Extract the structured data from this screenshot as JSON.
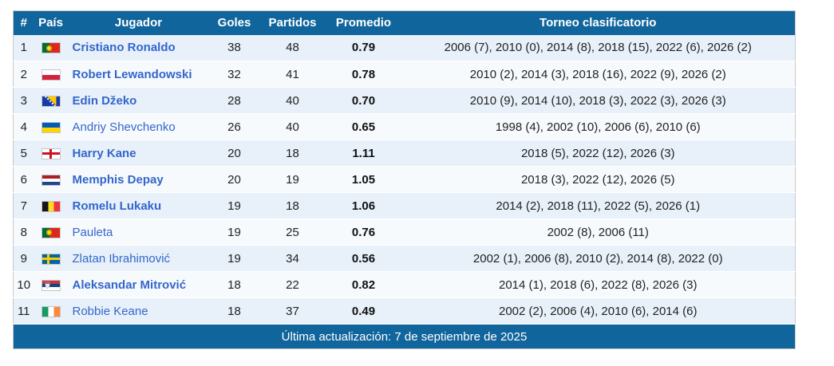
{
  "table": {
    "headers": [
      "#",
      "País",
      "Jugador",
      "Goles",
      "Partidos",
      "Promedio",
      "Torneo clasificatorio"
    ],
    "rows": [
      {
        "rank": "1",
        "country": "portugal",
        "player": "Cristiano Ronaldo",
        "bold": true,
        "goals": "38",
        "matches": "48",
        "average": "0.79",
        "tournaments": "2006 (7), 2010 (0), 2014 (8), 2018 (15), 2022 (6), 2026 (2)"
      },
      {
        "rank": "2",
        "country": "poland",
        "player": "Robert Lewandowski",
        "bold": true,
        "goals": "32",
        "matches": "41",
        "average": "0.78",
        "tournaments": "2010 (2), 2014 (3), 2018 (16), 2022 (9), 2026 (2)"
      },
      {
        "rank": "3",
        "country": "bosnia",
        "player": "Edin Džeko",
        "bold": true,
        "goals": "28",
        "matches": "40",
        "average": "0.70",
        "tournaments": "2010 (9), 2014 (10), 2018 (3), 2022 (3), 2026 (3)"
      },
      {
        "rank": "4",
        "country": "ukraine",
        "player": "Andriy Shevchenko",
        "bold": false,
        "goals": "26",
        "matches": "40",
        "average": "0.65",
        "tournaments": "1998 (4), 2002 (10), 2006 (6), 2010 (6)"
      },
      {
        "rank": "5",
        "country": "england",
        "player": "Harry Kane",
        "bold": true,
        "goals": "20",
        "matches": "18",
        "average": "1.11",
        "tournaments": "2018 (5), 2022 (12), 2026 (3)"
      },
      {
        "rank": "6",
        "country": "netherlands",
        "player": "Memphis Depay",
        "bold": true,
        "goals": "20",
        "matches": "19",
        "average": "1.05",
        "tournaments": "2018 (3), 2022 (12), 2026 (5)"
      },
      {
        "rank": "7",
        "country": "belgium",
        "player": "Romelu Lukaku",
        "bold": true,
        "goals": "19",
        "matches": "18",
        "average": "1.06",
        "tournaments": "2014 (2), 2018 (11), 2022 (5), 2026 (1)"
      },
      {
        "rank": "8",
        "country": "portugal",
        "player": "Pauleta",
        "bold": false,
        "goals": "19",
        "matches": "25",
        "average": "0.76",
        "tournaments": "2002 (8), 2006 (11)"
      },
      {
        "rank": "9",
        "country": "sweden",
        "player": "Zlatan Ibrahimović",
        "bold": false,
        "goals": "19",
        "matches": "34",
        "average": "0.56",
        "tournaments": "2002 (1), 2006 (8), 2010 (2), 2014 (8), 2022 (0)"
      },
      {
        "rank": "10",
        "country": "serbia",
        "player": "Aleksandar Mitrović",
        "bold": true,
        "goals": "18",
        "matches": "22",
        "average": "0.82",
        "tournaments": "2014 (1), 2018 (6), 2022 (8), 2026 (3)"
      },
      {
        "rank": "11",
        "country": "ireland",
        "player": "Robbie Keane",
        "bold": false,
        "goals": "18",
        "matches": "37",
        "average": "0.49",
        "tournaments": "2002 (2), 2006 (4), 2010 (6), 2014 (6)"
      }
    ],
    "footer": "Última actualización: 7 de septiembre de 2025"
  },
  "colors": {
    "header_bg": "#10659c",
    "footer_bg": "#10659c",
    "row_odd_bg": "#e8f1fa",
    "row_even_bg": "#f7fafd",
    "link_blue": "#3366cc",
    "body_text": "#222222",
    "border": "#c8c8c8"
  }
}
